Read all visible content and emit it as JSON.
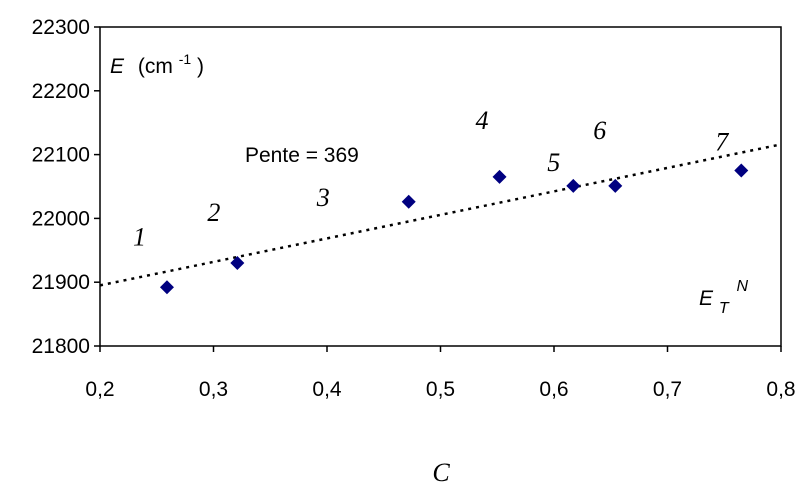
{
  "chart_data": {
    "type": "scatter",
    "xlim": [
      0.2,
      0.8
    ],
    "ylim": [
      21800,
      22300
    ],
    "x_ticks": [
      0.2,
      0.3,
      0.4,
      0.5,
      0.6,
      0.7,
      0.8
    ],
    "x_tick_labels": [
      "0,2",
      "0,3",
      "0,4",
      "0,5",
      "0,6",
      "0,7",
      "0,8"
    ],
    "y_ticks": [
      21800,
      21900,
      22000,
      22100,
      22200,
      22300
    ],
    "y_tick_labels": [
      "21800",
      "21900",
      "22000",
      "22100",
      "22200",
      "22300"
    ],
    "grid": false,
    "xlabel": "C",
    "ylabel": {
      "main": "E",
      "unit_base": "(cm",
      "unit_exp": "-1",
      "unit_close": ")"
    },
    "corner_label": {
      "main": "E",
      "sub": "T",
      "sup": "N"
    },
    "annotation": "Pente = 369",
    "points": [
      {
        "label": "1",
        "x": 0.259,
        "y": 21892
      },
      {
        "label": "2",
        "x": 0.321,
        "y": 21930
      },
      {
        "label": "3",
        "x": 0.472,
        "y": 22026
      },
      {
        "label": "4",
        "x": 0.552,
        "y": 22065
      },
      {
        "label": "5",
        "x": 0.617,
        "y": 22051
      },
      {
        "label": "6",
        "x": 0.654,
        "y": 22051
      },
      {
        "label": "7",
        "x": 0.765,
        "y": 22075
      }
    ],
    "trendline": {
      "style": "dotted",
      "x": [
        0.2,
        0.8
      ],
      "y": [
        21895,
        22116
      ]
    },
    "marker_color": "#000080"
  }
}
